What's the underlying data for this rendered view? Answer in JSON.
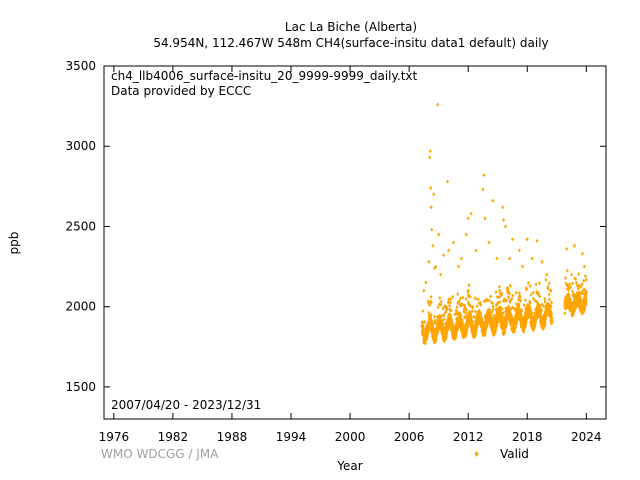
{
  "chart_data": {
    "type": "scatter",
    "title": "Lac La Biche (Alberta)",
    "subtitle": "54.954N, 112.467W 548m    CH4(surface-insitu data1 default) daily",
    "annotation_file": "ch4_llb4006_surface-insitu_20_9999-9999_daily.txt",
    "annotation_provider": "Data provided by ECCC",
    "date_range": "2007/04/20 - 2023/12/31",
    "xlabel": "Year",
    "ylabel": "ppb",
    "xlim": [
      1975,
      2026
    ],
    "ylim": [
      1300,
      3500
    ],
    "x_ticks": [
      1976,
      1982,
      1988,
      1994,
      2000,
      2006,
      2012,
      2018,
      2024
    ],
    "y_ticks": [
      1500,
      2000,
      2500,
      3000,
      3500
    ],
    "legend": {
      "label": "Valid",
      "position": "bottom-right"
    },
    "credit": "WMO WDCGG / JMA",
    "marker_color": "#ffa500",
    "segments": [
      {
        "start": 2007.3,
        "end": 2020.5,
        "base_start": 1850,
        "base_end": 1950,
        "amplitude": 45
      },
      {
        "start": 2021.8,
        "end": 2024.0,
        "base_start": 2005,
        "base_end": 2030,
        "amplitude": 30
      }
    ],
    "spikes": [
      {
        "x": 2007.5,
        "y": 2100
      },
      {
        "x": 2007.7,
        "y": 2150
      },
      {
        "x": 2008.0,
        "y": 2280
      },
      {
        "x": 2008.1,
        "y": 2930
      },
      {
        "x": 2008.15,
        "y": 2970
      },
      {
        "x": 2008.2,
        "y": 2740
      },
      {
        "x": 2008.25,
        "y": 2620
      },
      {
        "x": 2008.3,
        "y": 2480
      },
      {
        "x": 2008.4,
        "y": 2380
      },
      {
        "x": 2008.5,
        "y": 2700
      },
      {
        "x": 2008.6,
        "y": 2240
      },
      {
        "x": 2008.7,
        "y": 2250
      },
      {
        "x": 2008.9,
        "y": 3260
      },
      {
        "x": 2009.0,
        "y": 2450
      },
      {
        "x": 2009.2,
        "y": 2200
      },
      {
        "x": 2009.5,
        "y": 2320
      },
      {
        "x": 2009.9,
        "y": 2780
      },
      {
        "x": 2010.0,
        "y": 2350
      },
      {
        "x": 2010.5,
        "y": 2400
      },
      {
        "x": 2011.0,
        "y": 2250
      },
      {
        "x": 2011.3,
        "y": 2300
      },
      {
        "x": 2011.8,
        "y": 2450
      },
      {
        "x": 2012.0,
        "y": 2550
      },
      {
        "x": 2012.3,
        "y": 2580
      },
      {
        "x": 2012.8,
        "y": 2350
      },
      {
        "x": 2013.5,
        "y": 2730
      },
      {
        "x": 2013.6,
        "y": 2820
      },
      {
        "x": 2013.7,
        "y": 2550
      },
      {
        "x": 2014.1,
        "y": 2400
      },
      {
        "x": 2014.5,
        "y": 2660
      },
      {
        "x": 2014.9,
        "y": 2300
      },
      {
        "x": 2015.5,
        "y": 2620
      },
      {
        "x": 2015.6,
        "y": 2540
      },
      {
        "x": 2015.8,
        "y": 2500
      },
      {
        "x": 2016.2,
        "y": 2300
      },
      {
        "x": 2016.5,
        "y": 2420
      },
      {
        "x": 2017.2,
        "y": 2350
      },
      {
        "x": 2017.5,
        "y": 2250
      },
      {
        "x": 2018.0,
        "y": 2420
      },
      {
        "x": 2018.5,
        "y": 2300
      },
      {
        "x": 2019.0,
        "y": 2410
      },
      {
        "x": 2019.5,
        "y": 2280
      },
      {
        "x": 2020.0,
        "y": 2200
      },
      {
        "x": 2022.0,
        "y": 2360
      },
      {
        "x": 2022.5,
        "y": 2200
      },
      {
        "x": 2022.8,
        "y": 2380
      },
      {
        "x": 2023.0,
        "y": 2150
      },
      {
        "x": 2023.6,
        "y": 2330
      },
      {
        "x": 2023.8,
        "y": 2250
      }
    ]
  }
}
